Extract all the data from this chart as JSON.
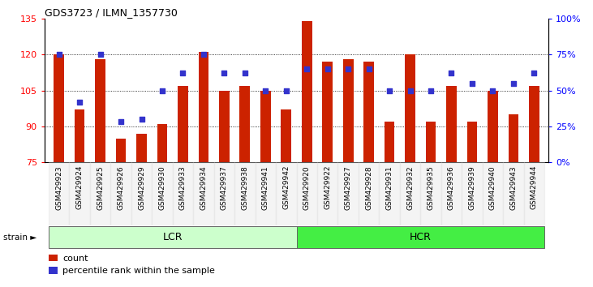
{
  "title": "GDS3723 / ILMN_1357730",
  "categories": [
    "GSM429923",
    "GSM429924",
    "GSM429925",
    "GSM429926",
    "GSM429929",
    "GSM429930",
    "GSM429933",
    "GSM429934",
    "GSM429937",
    "GSM429938",
    "GSM429941",
    "GSM429942",
    "GSM429920",
    "GSM429922",
    "GSM429927",
    "GSM429928",
    "GSM429931",
    "GSM429932",
    "GSM429935",
    "GSM429936",
    "GSM429939",
    "GSM429940",
    "GSM429943",
    "GSM429944"
  ],
  "bar_values": [
    120,
    97,
    118,
    85,
    87,
    91,
    107,
    121,
    105,
    107,
    105,
    97,
    134,
    117,
    118,
    117,
    92,
    120,
    92,
    107,
    92,
    105,
    95,
    107
  ],
  "dot_values_pct": [
    75,
    42,
    75,
    28,
    30,
    50,
    62,
    75,
    62,
    62,
    50,
    50,
    65,
    65,
    65,
    65,
    50,
    50,
    50,
    62,
    55,
    50,
    55,
    62
  ],
  "bar_color": "#cc2200",
  "dot_color": "#3333cc",
  "ylim_left": [
    75,
    135
  ],
  "ylim_right": [
    0,
    100
  ],
  "yticks_left": [
    75,
    90,
    105,
    120,
    135
  ],
  "yticks_right": [
    0,
    25,
    50,
    75,
    100
  ],
  "ytick_labels_right": [
    "0%",
    "25%",
    "50%",
    "75%",
    "100%"
  ],
  "grid_values": [
    90,
    105,
    120
  ],
  "lcr_count": 12,
  "lcr_label": "LCR",
  "hcr_label": "HCR",
  "strain_label": "strain",
  "legend_bar": "count",
  "legend_dot": "percentile rank within the sample",
  "lcr_color": "#ccffcc",
  "hcr_color": "#44ee44",
  "bar_width": 0.5
}
